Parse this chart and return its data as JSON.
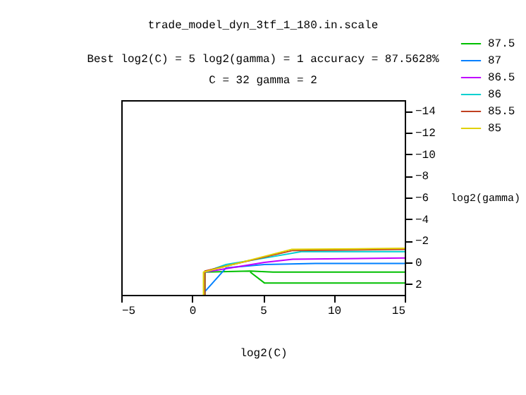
{
  "chart_data": {
    "type": "line",
    "title": "trade_model_dyn_3tf_1_180.in.scale",
    "subtitle": "Best log2(C) = 5  log2(gamma) = 1  accuracy = 87.5628%",
    "annotations": [
      "C = 32  gamma = 2"
    ],
    "xlabel": "log2(C)",
    "ylabel": "log2(gamma)",
    "xlim": [
      -5,
      15
    ],
    "xticks": [
      -5,
      0,
      5,
      10,
      15
    ],
    "ylim": [
      3,
      -15
    ],
    "yticks": [
      -14,
      -12,
      -10,
      -8,
      -6,
      -4,
      -2,
      0,
      2
    ],
    "legend": "top right",
    "grid": false,
    "marker": "none",
    "line_style": "solid",
    "series": [
      {
        "name": "87.5",
        "color": "#00c000",
        "x": [
          0.9,
          0.9,
          4.1,
          5.7,
          15,
          null,
          4.1,
          5.1,
          15
        ],
        "values": [
          3,
          0.9,
          0.8,
          0.9,
          0.9,
          null,
          0.9,
          1.9,
          1.9
        ]
      },
      {
        "name": "87",
        "color": "#0080ff",
        "x": [
          0.9,
          2.4,
          5.1,
          8.7,
          15
        ],
        "values": [
          2.7,
          0.5,
          0.2,
          0.1,
          0.1
        ]
      },
      {
        "name": "86.5",
        "color": "#c000ff",
        "x": [
          0.9,
          5.1,
          7.1,
          15
        ],
        "values": [
          0.9,
          0,
          -0.3,
          -0.4
        ]
      },
      {
        "name": "86",
        "color": "#00d0d0",
        "x": [
          0.9,
          2.4,
          5.1,
          7.7,
          15
        ],
        "values": [
          0.9,
          0.2,
          -0.4,
          -1,
          -1
        ]
      },
      {
        "name": "85.5",
        "color": "#c04020",
        "x": [
          0.9,
          0.9,
          7.1,
          15
        ],
        "values": [
          3,
          0.8,
          -1.1,
          -1.2
        ]
      },
      {
        "name": "85",
        "color": "#e0d000",
        "x": [
          0.8,
          0.8,
          7,
          15
        ],
        "values": [
          3,
          0.9,
          -1.2,
          -1.3
        ]
      }
    ]
  }
}
